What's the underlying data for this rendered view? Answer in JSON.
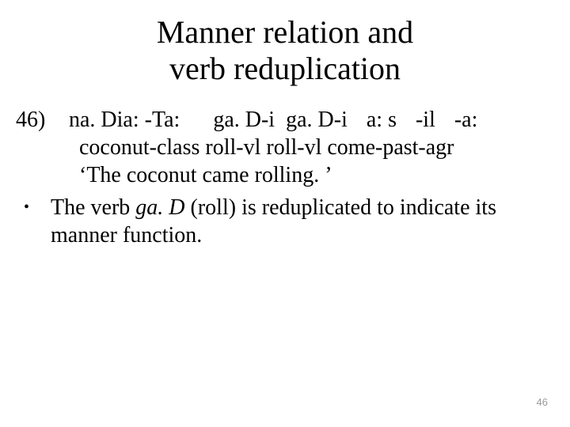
{
  "title_line1": "Manner relation and",
  "title_line2": "verb reduplication",
  "example": {
    "number": "46)",
    "seg1": "na. Dia: -Ta:",
    "seg2": "ga. D-i",
    "seg3": "ga. D-i",
    "seg4": "a: s",
    "seg5": "-il",
    "seg6": "-a:",
    "gloss": "coconut-class roll-vl roll-vl come-past-agr",
    "translation": "‘The coconut came rolling. ’"
  },
  "bullet": {
    "pre": "The verb ",
    "verb": "ga. D",
    "post": " (roll) is reduplicated to indicate its manner function."
  },
  "page_number": "46",
  "colors": {
    "text": "#000000",
    "background": "#ffffff",
    "page_number": "#9a9a98"
  },
  "fonts": {
    "body_family": "Times New Roman",
    "title_size_pt": 40,
    "body_size_pt": 28,
    "page_number_family": "Arial",
    "page_number_size_pt": 13
  }
}
